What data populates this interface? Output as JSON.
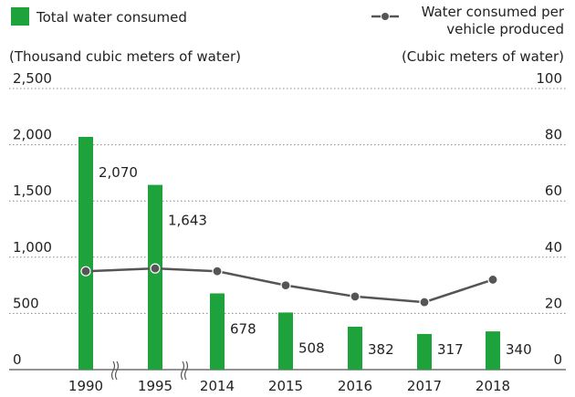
{
  "chart_data": {
    "type": "bar",
    "categories": [
      "1990",
      "1995",
      "2014",
      "2015",
      "2016",
      "2017",
      "2018"
    ],
    "y_label": "(Thousand cubic meters of water)",
    "y2_label": "(Cubic meters of water)",
    "series": [
      {
        "name": "Total water consumed",
        "type": "bar",
        "color": "#1ea23c",
        "values": [
          2070,
          1643,
          678,
          508,
          382,
          317,
          340
        ],
        "value_labels": [
          "2,070",
          "1,643",
          "678",
          "508",
          "382",
          "317",
          "340"
        ]
      },
      {
        "name": "Water consumed per vehicle produced",
        "type": "line",
        "axis": "y2",
        "color": "#555555",
        "values": [
          35,
          36,
          35,
          30,
          26,
          24,
          32
        ]
      }
    ],
    "ylim": [
      0,
      2500
    ],
    "yticks": [
      0,
      {
        "value": 500,
        "label": "500"
      },
      {
        "value": 1000,
        "label": "1,000"
      },
      {
        "value": 1500,
        "label": "1,500"
      },
      {
        "value": 2000,
        "label": "2,000"
      },
      {
        "value": 2500,
        "label": "2,500"
      }
    ],
    "y2lim": [
      0,
      100
    ],
    "y2ticks": [
      0,
      20,
      40,
      60,
      80,
      100
    ],
    "grid": true
  }
}
